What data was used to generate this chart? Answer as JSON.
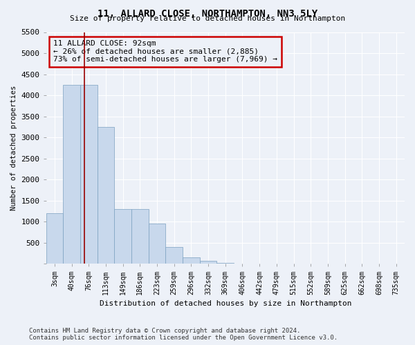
{
  "title": "11, ALLARD CLOSE, NORTHAMPTON, NN3 5LY",
  "subtitle": "Size of property relative to detached houses in Northampton",
  "xlabel": "Distribution of detached houses by size in Northampton",
  "ylabel": "Number of detached properties",
  "categories": [
    "3sqm",
    "40sqm",
    "76sqm",
    "113sqm",
    "149sqm",
    "186sqm",
    "223sqm",
    "259sqm",
    "296sqm",
    "332sqm",
    "369sqm",
    "406sqm",
    "442sqm",
    "479sqm",
    "515sqm",
    "552sqm",
    "589sqm",
    "625sqm",
    "662sqm",
    "698sqm",
    "735sqm"
  ],
  "values": [
    1200,
    4250,
    4250,
    3250,
    1300,
    1300,
    950,
    400,
    150,
    80,
    20,
    0,
    0,
    0,
    0,
    0,
    0,
    0,
    0,
    0,
    0
  ],
  "bar_color": "#c8d8ec",
  "bar_edge_color": "#7aa0c0",
  "vline_x": 1.75,
  "vline_color": "#990000",
  "annotation_text": "11 ALLARD CLOSE: 92sqm\n← 26% of detached houses are smaller (2,885)\n73% of semi-detached houses are larger (7,969) →",
  "annotation_box_color": "#cc0000",
  "ylim": [
    0,
    5500
  ],
  "yticks": [
    0,
    500,
    1000,
    1500,
    2000,
    2500,
    3000,
    3500,
    4000,
    4500,
    5000,
    5500
  ],
  "bg_color": "#edf1f8",
  "grid_color": "#d8e0ec",
  "footer": "Contains HM Land Registry data © Crown copyright and database right 2024.\nContains public sector information licensed under the Open Government Licence v3.0."
}
